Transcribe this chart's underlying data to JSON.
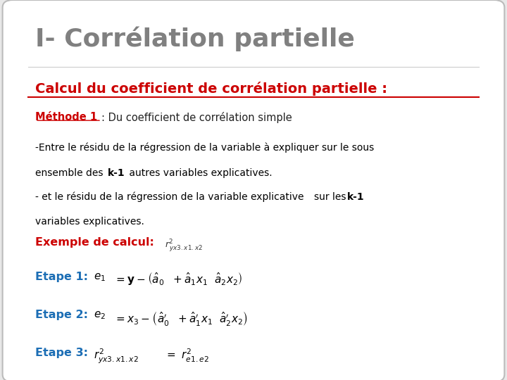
{
  "bg_color": "#e8e8e8",
  "slide_bg": "#ffffff",
  "title": "I- Corrélation partielle",
  "title_color": "#808080",
  "title_fontsize": 26,
  "subtitle": "Calcul du coefficient de corrélation partielle :",
  "subtitle_color": "#cc0000",
  "subtitle_fontsize": 14,
  "method_label": "Méthode 1",
  "method_rest": ": Du coefficient de corrélation simple",
  "method_color": "#cc0000",
  "method_fontsize": 10.5,
  "body_color": "#000000",
  "body_fontsize": 10.0,
  "highlight_color": "#cc0000",
  "blue_color": "#1c6eb5",
  "line1": "-Entre le résidu de la régression de la variable à expliquer sur le sous",
  "line2": "ensemble des k-1 autres variables explicatives.",
  "line3a": "- et le résidu de la régression de la variable explicative",
  "line3b": "sur les k-1",
  "line4": "variables explicatives.",
  "example_label": "Exemple de calcul:",
  "etape1_label": "Etape 1:",
  "etape2_label": "Etape 2:",
  "etape3_label": "Etape 3:"
}
